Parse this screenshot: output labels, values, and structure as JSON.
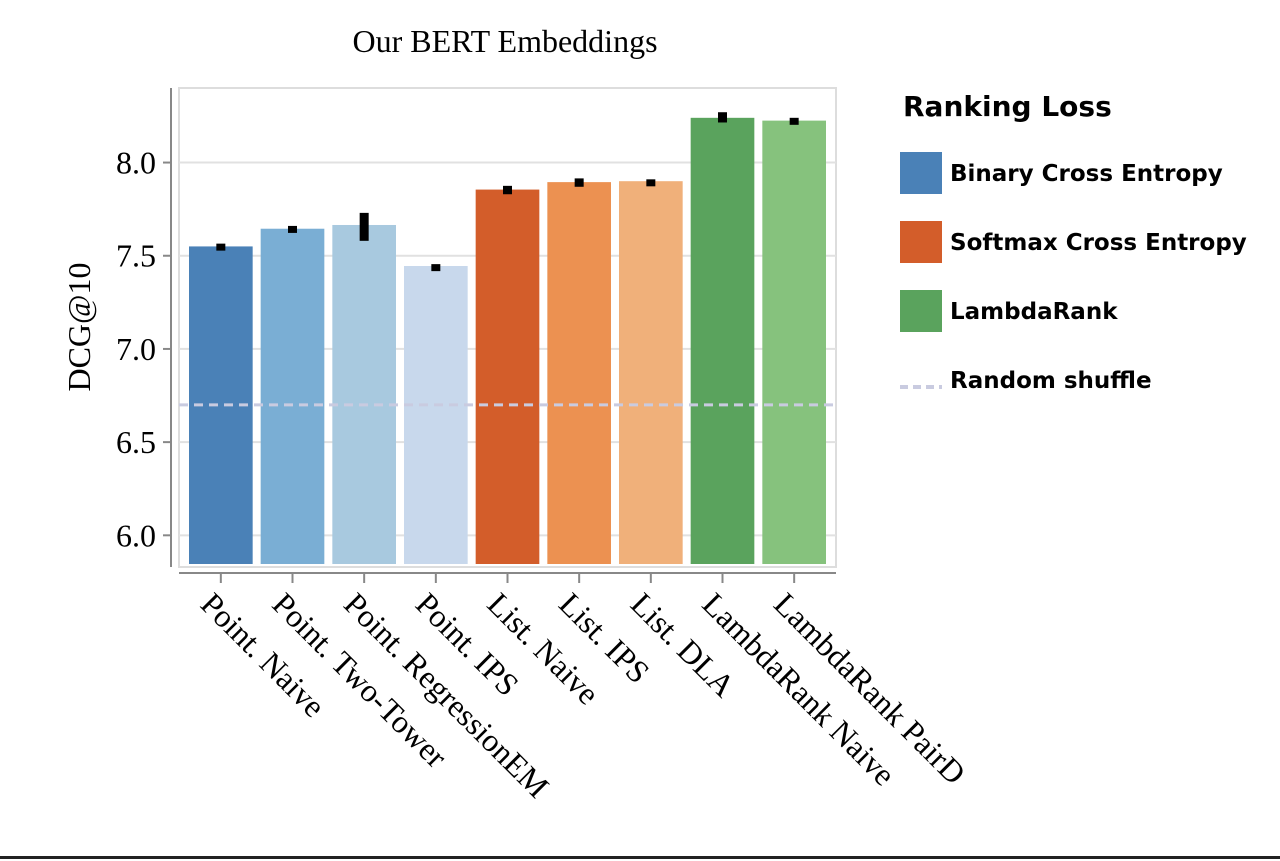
{
  "chart_data": {
    "type": "bar",
    "title": "Our BERT Embeddings",
    "xlabel": "",
    "ylabel": "DCG@10",
    "ylim": [
      5.83,
      8.4
    ],
    "yticks": [
      6.0,
      6.5,
      7.0,
      7.5,
      8.0
    ],
    "ytick_labels": [
      "6.0",
      "6.5",
      "7.0",
      "7.5",
      "8.0"
    ],
    "categories": [
      "Point. Naive",
      "Point. Two-Tower",
      "Point. RegressionEM",
      "Point. IPS",
      "List. Naive",
      "List. IPS",
      "List. DLA",
      "LambdaRank Naive",
      "LambdaRank PairD"
    ],
    "values": [
      7.55,
      7.645,
      7.665,
      7.445,
      7.855,
      7.895,
      7.9,
      8.24,
      8.225
    ],
    "error_low": [
      7.54,
      7.63,
      7.58,
      7.43,
      7.83,
      7.87,
      7.885,
      8.215,
      8.205
    ],
    "error_high": [
      7.565,
      7.66,
      7.73,
      7.455,
      7.875,
      7.915,
      7.91,
      8.27,
      8.24
    ],
    "bar_colors": [
      "#4a81b7",
      "#7aaed4",
      "#a8c9df",
      "#c8d8ec",
      "#d35d2a",
      "#ec9151",
      "#f0b07a",
      "#5aa35d",
      "#86c27d"
    ],
    "reference_line": {
      "label": "Random shuffle",
      "value": 6.7,
      "color": "#c9cbe0"
    },
    "grid": true,
    "legend": {
      "title": "Ranking Loss",
      "position": "right",
      "entries": [
        {
          "label": "Binary Cross Entropy",
          "color": "#4a81b7",
          "kind": "patch"
        },
        {
          "label": "Softmax Cross Entropy",
          "color": "#d35d2a",
          "kind": "patch"
        },
        {
          "label": "LambdaRank",
          "color": "#5aa35d",
          "kind": "patch"
        },
        {
          "label": "Random shuffle",
          "color": "#c9cbe0",
          "kind": "dashed-line"
        }
      ]
    }
  }
}
